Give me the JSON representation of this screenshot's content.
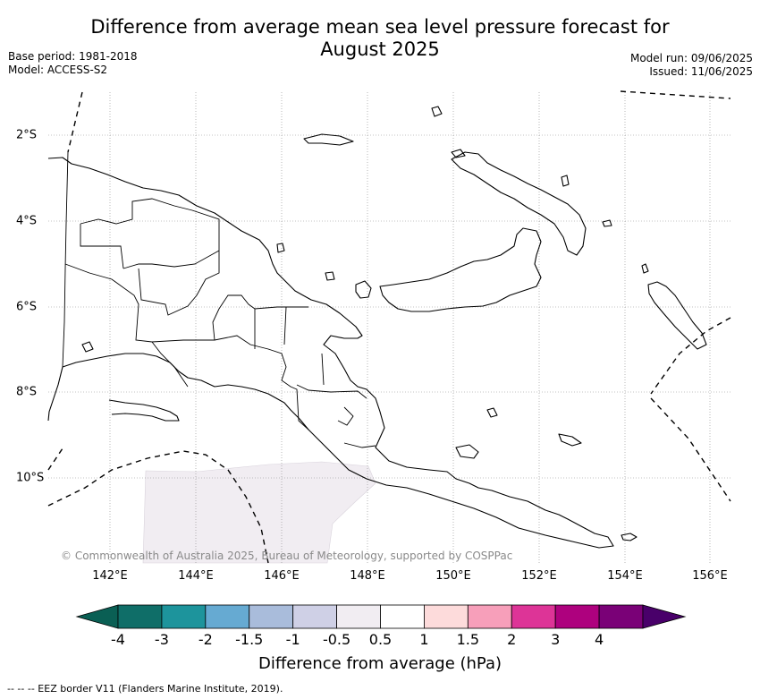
{
  "title_line1": "Difference from average mean sea level pressure forecast for",
  "title_line2": "August 2025",
  "base_period": "Base period: 1981-2018",
  "model": "Model: ACCESS-S2",
  "model_run": "Model run: 09/06/2025",
  "issued": "Issued: 11/06/2025",
  "copyright": "© Commonwealth of Australia 2025, Bureau of Meteorology, supported by COSPPac",
  "lon_labels": [
    "142°E",
    "144°E",
    "146°E",
    "148°E",
    "150°E",
    "152°E",
    "154°E",
    "156°E"
  ],
  "lat_labels": [
    "2°S",
    "4°S",
    "6°S",
    "8°S",
    "10°S"
  ],
  "colorbar": {
    "ticks": [
      "-4",
      "-3",
      "-2",
      "-1.5",
      "-1",
      "-0.5",
      "0.5",
      "1",
      "1.5",
      "2",
      "3",
      "4"
    ],
    "colors": [
      "#0f6e68",
      "#1d949c",
      "#66aad2",
      "#a9bcdb",
      "#cfd0e6",
      "#f1edf2",
      "#ffffff",
      "#fddbdb",
      "#f79fba",
      "#dd3497",
      "#ae017e",
      "#7a0177"
    ],
    "extend_low_color": "#0a5f54",
    "extend_high_color": "#49006a",
    "label": "Difference from average (hPa)"
  },
  "anomaly_region": {
    "category": "-1 to -0.5 hPa",
    "color": "#f1edf2"
  },
  "eez_note": "--  --  -- EEZ border V11 (Flanders Marine Institute, 2019)."
}
